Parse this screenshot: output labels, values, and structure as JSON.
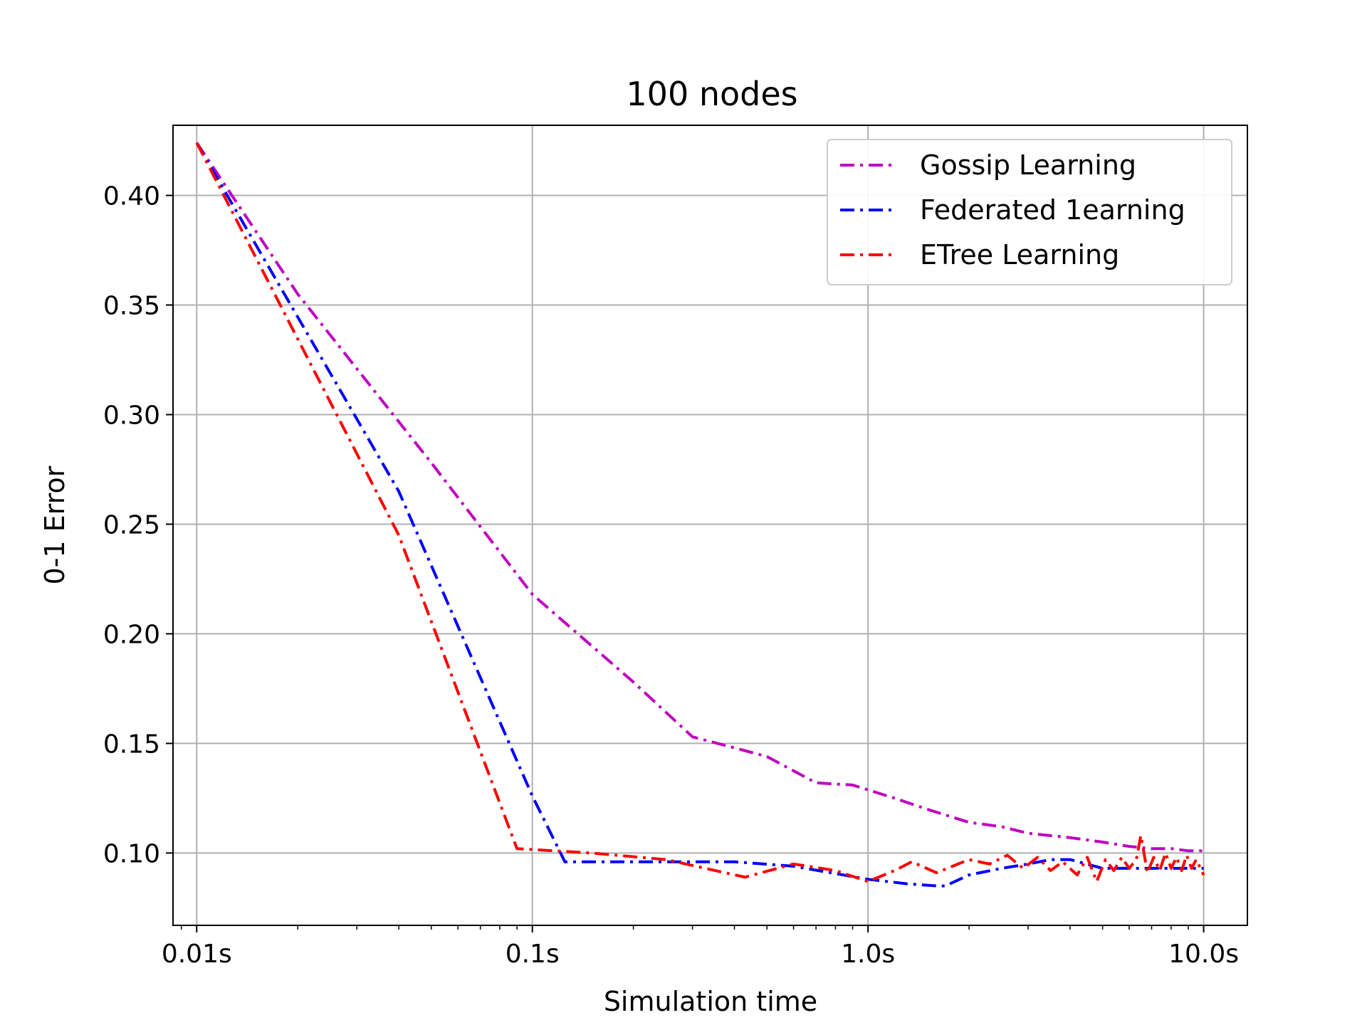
{
  "chart_data": {
    "type": "line",
    "title": "100 nodes",
    "xlabel": "Simulation time",
    "ylabel": "0-1 Error",
    "xscale": "log",
    "xlim": [
      0.0085,
      13.5
    ],
    "ylim": [
      0.067,
      0.432
    ],
    "x_ticks": [
      {
        "value": 0.01,
        "label": "0.01s"
      },
      {
        "value": 0.1,
        "label": "0.1s"
      },
      {
        "value": 1.0,
        "label": "1.0s"
      },
      {
        "value": 10.0,
        "label": "10.0s"
      }
    ],
    "y_ticks": [
      {
        "value": 0.1,
        "label": "0.10"
      },
      {
        "value": 0.15,
        "label": "0.15"
      },
      {
        "value": 0.2,
        "label": "0.20"
      },
      {
        "value": 0.25,
        "label": "0.25"
      },
      {
        "value": 0.3,
        "label": "0.30"
      },
      {
        "value": 0.35,
        "label": "0.35"
      },
      {
        "value": 0.4,
        "label": "0.40"
      }
    ],
    "grid": true,
    "legend_position": "top-right",
    "series": [
      {
        "name": "Gossip Learning",
        "color": "#bf00bf",
        "x": [
          0.01,
          0.02,
          0.05,
          0.1,
          0.2,
          0.3,
          0.4,
          0.5,
          0.7,
          0.9,
          1.2,
          1.5,
          2.0,
          2.5,
          3.0,
          4.0,
          5.0,
          6.0,
          7.0,
          8.0,
          9.0,
          10.0
        ],
        "y": [
          0.424,
          0.355,
          0.278,
          0.218,
          0.178,
          0.153,
          0.148,
          0.144,
          0.132,
          0.131,
          0.125,
          0.12,
          0.114,
          0.112,
          0.109,
          0.107,
          0.105,
          0.103,
          0.102,
          0.102,
          0.101,
          0.101
        ]
      },
      {
        "name": "Federated 1earning",
        "color": "#0000ff",
        "x": [
          0.01,
          0.04,
          0.1,
          0.125,
          0.2,
          0.4,
          0.6,
          1.0,
          1.3,
          1.6,
          1.7,
          2.0,
          2.5,
          3.0,
          3.5,
          4.0,
          5.0,
          6.0,
          7.0,
          8.0,
          9.0,
          10.0
        ],
        "y": [
          0.424,
          0.265,
          0.126,
          0.096,
          0.096,
          0.096,
          0.094,
          0.088,
          0.086,
          0.085,
          0.085,
          0.09,
          0.093,
          0.095,
          0.097,
          0.097,
          0.093,
          0.093,
          0.093,
          0.093,
          0.093,
          0.093
        ]
      },
      {
        "name": "ETree Learning",
        "color": "#ff0000",
        "x": [
          0.01,
          0.04,
          0.09,
          0.15,
          0.25,
          0.43,
          0.6,
          0.8,
          1.0,
          1.2,
          1.35,
          1.6,
          2.0,
          2.3,
          2.6,
          2.9,
          3.2,
          3.5,
          3.8,
          4.2,
          4.5,
          4.8,
          5.1,
          5.4,
          5.7,
          6.0,
          6.3,
          6.5,
          6.8,
          7.1,
          7.4,
          7.7,
          8.0,
          8.3,
          8.6,
          8.9,
          9.2,
          9.5,
          10.0
        ],
        "y": [
          0.424,
          0.245,
          0.102,
          0.1,
          0.097,
          0.089,
          0.095,
          0.092,
          0.087,
          0.092,
          0.096,
          0.091,
          0.097,
          0.095,
          0.099,
          0.093,
          0.098,
          0.092,
          0.096,
          0.09,
          0.098,
          0.087,
          0.097,
          0.092,
          0.098,
          0.093,
          0.097,
          0.108,
          0.091,
          0.098,
          0.092,
          0.1,
          0.093,
          0.098,
          0.092,
          0.099,
          0.093,
          0.097,
          0.09
        ]
      }
    ]
  }
}
